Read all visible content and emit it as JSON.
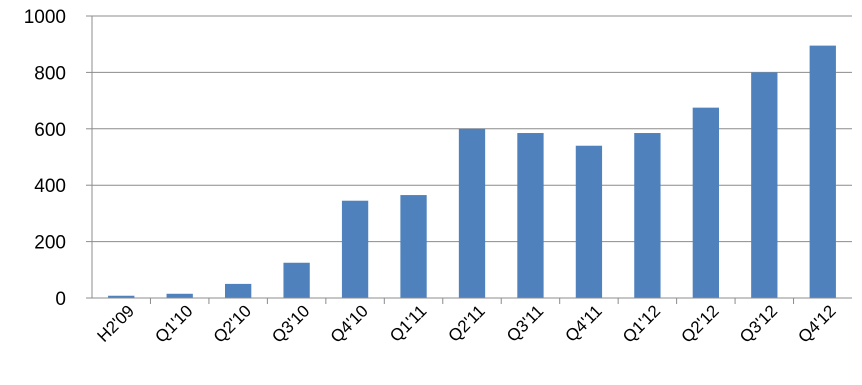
{
  "chart_data": {
    "type": "bar",
    "title": "",
    "xlabel": "",
    "ylabel": "",
    "categories": [
      "H2'09",
      "Q1'10",
      "Q2'10",
      "Q3'10",
      "Q4'10",
      "Q1'11",
      "Q2'11",
      "Q3'11",
      "Q4'11",
      "Q1'12",
      "Q2'12",
      "Q3'12",
      "Q4'12"
    ],
    "values": [
      8,
      15,
      50,
      125,
      345,
      365,
      600,
      585,
      540,
      585,
      675,
      800,
      895
    ],
    "ylim": [
      0,
      1000
    ],
    "yticks": [
      0,
      200,
      400,
      600,
      800,
      1000
    ],
    "grid": true,
    "legend": "none",
    "colors": {
      "bar": "#4f81bd"
    }
  }
}
